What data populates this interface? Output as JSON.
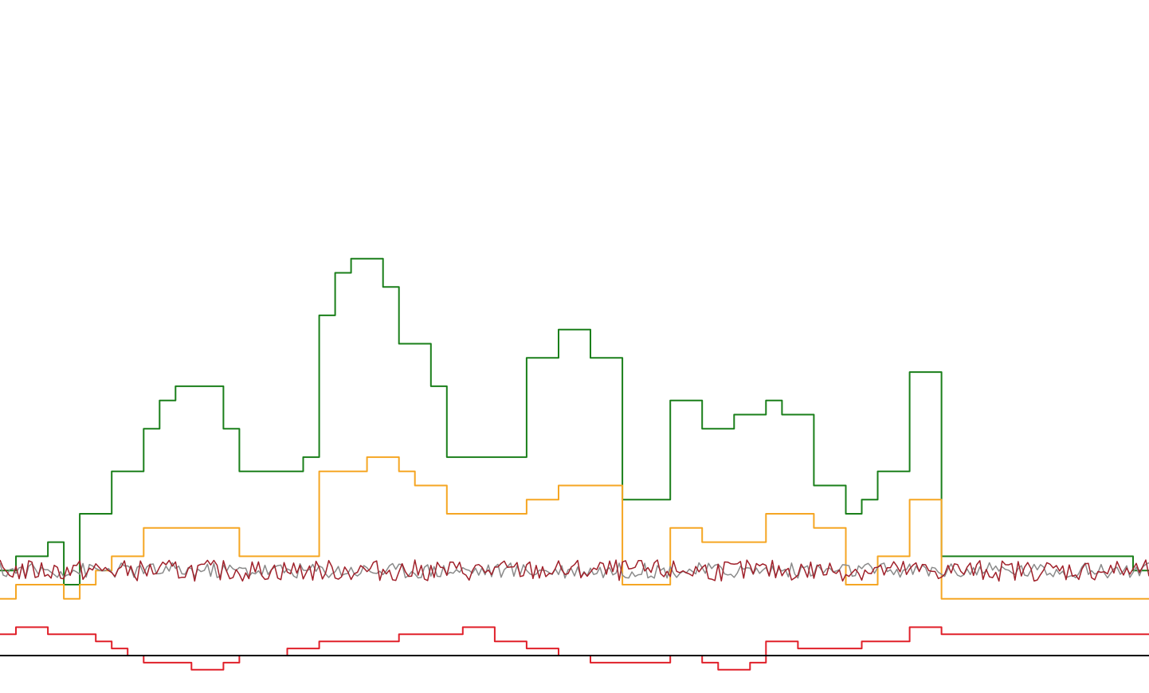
{
  "chart_data": {
    "type": "line",
    "step": true,
    "x_steps": 72,
    "ylim": [
      -6,
      38
    ],
    "axis": {
      "x_axis_visible": true,
      "y_axis_visible": false,
      "tick_labels": false
    },
    "grid": false,
    "legend": "none",
    "series": [
      {
        "color": "#1a7f1a",
        "values": [
          0,
          1,
          1,
          2,
          -1,
          4,
          4,
          7,
          7,
          10,
          12,
          13,
          13,
          13,
          10,
          7,
          7,
          7,
          7,
          8,
          18,
          21,
          22,
          22,
          20,
          16,
          16,
          13,
          8,
          8,
          8,
          8,
          8,
          15,
          15,
          17,
          17,
          15,
          15,
          5,
          5,
          5,
          12,
          12,
          10,
          10,
          11,
          11,
          12,
          11,
          11,
          6,
          6,
          4,
          5,
          7,
          7,
          14,
          14,
          1,
          1,
          1,
          1,
          1,
          1,
          1,
          1,
          1,
          1,
          1,
          1,
          0
        ]
      },
      {
        "color": "#f5a623",
        "values": [
          -2,
          -1,
          -1,
          -1,
          -2,
          -1,
          0,
          1,
          1,
          3,
          3,
          3,
          3,
          3,
          3,
          1,
          1,
          1,
          1,
          1,
          7,
          7,
          7,
          8,
          8,
          7,
          6,
          6,
          4,
          4,
          4,
          4,
          4,
          5,
          5,
          6,
          6,
          6,
          6,
          -1,
          -1,
          -1,
          3,
          3,
          2,
          2,
          2,
          2,
          4,
          4,
          4,
          3,
          3,
          -1,
          -1,
          1,
          1,
          5,
          5,
          -2,
          -2,
          -2,
          -2,
          -2,
          -2,
          -2,
          -2,
          -2,
          -2,
          -2,
          -2,
          -2
        ]
      },
      {
        "color": "#e0202a",
        "values": [
          -4.5,
          -4,
          -4,
          -4.5,
          -4.5,
          -4.5,
          -5,
          -5.5,
          -6,
          -6.5,
          -6.5,
          -6.5,
          -7,
          -7,
          -6.5,
          -6,
          -6,
          -6,
          -5.5,
          -5.5,
          -5,
          -5,
          -5,
          -5,
          -5,
          -4.5,
          -4.5,
          -4.5,
          -4.5,
          -4,
          -4,
          -5,
          -5,
          -5.5,
          -5.5,
          -6,
          -6,
          -6.5,
          -6.5,
          -6.5,
          -6.5,
          -6.5,
          -6,
          -6,
          -6.5,
          -7,
          -7,
          -6.5,
          -5,
          -5,
          -5.5,
          -5.5,
          -5.5,
          -5.5,
          -5,
          -5,
          -5,
          -4,
          -4,
          -4.5,
          -4.5,
          -4.5,
          -4.5,
          -4.5,
          -4.5,
          -4.5,
          -4.5,
          -4.5,
          -4.5,
          -4.5,
          -4.5,
          -4.5
        ]
      },
      {
        "color": "#8a8a8a",
        "values": [
          0,
          0,
          0,
          0,
          0,
          0,
          0,
          0,
          0,
          0,
          0,
          0,
          0,
          0,
          0,
          0,
          0,
          0,
          0,
          0,
          0,
          0,
          0,
          0,
          0,
          0,
          0,
          0,
          0,
          0,
          0,
          0,
          0,
          0,
          0,
          0,
          0,
          0,
          0,
          0,
          0,
          0,
          0,
          0,
          0,
          0,
          0,
          0,
          0,
          0,
          0,
          0,
          0,
          0,
          0,
          0,
          0,
          0,
          0,
          0,
          0,
          0,
          0,
          0,
          0,
          0,
          0,
          0,
          0,
          0,
          0,
          0
        ]
      },
      {
        "color": "#a0202a",
        "values": [
          0,
          0,
          0,
          0,
          0,
          0,
          0,
          0,
          0,
          0,
          0,
          0,
          0,
          0,
          0,
          0,
          0,
          0,
          0,
          0,
          0,
          0,
          0,
          0,
          0,
          0,
          0,
          0,
          0,
          0,
          0,
          0,
          0,
          0,
          0,
          0,
          0,
          0,
          0,
          0,
          0,
          0,
          0,
          0,
          0,
          0,
          0,
          0,
          0,
          0,
          0,
          0,
          0,
          0,
          0,
          0,
          0,
          0,
          0,
          0,
          0,
          0,
          0,
          0,
          0,
          0,
          0,
          0,
          0,
          0,
          0,
          0
        ]
      }
    ]
  }
}
